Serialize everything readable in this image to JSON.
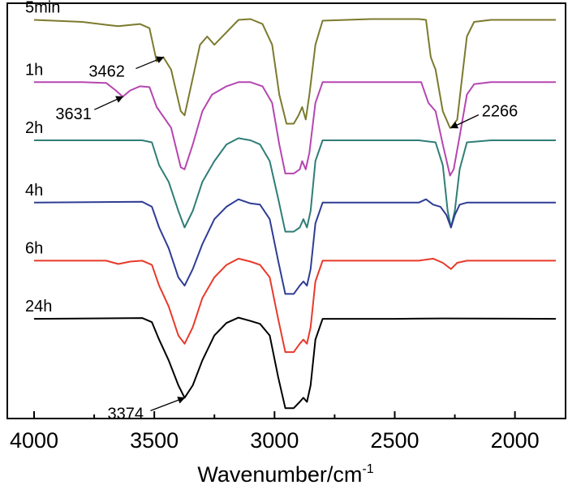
{
  "chart_data": {
    "type": "line",
    "title": "",
    "xlabel": "Wavenumber/cm",
    "xlabel_superscript": "-1",
    "ylabel": "",
    "xlim": [
      4000,
      1830
    ],
    "x_reversed": true,
    "x_ticks": [
      4000,
      3500,
      3000,
      2500,
      2000
    ],
    "x_tick_labels": [
      "4000",
      "3500",
      "3000",
      "2500",
      "2000"
    ],
    "grid": false,
    "legend": "inline labels at left of each trace",
    "series": [
      {
        "name": "5min",
        "color": "#7c7a2e",
        "baseline": 0.96,
        "points": [
          [
            4000,
            0.96
          ],
          [
            3800,
            0.955
          ],
          [
            3700,
            0.948
          ],
          [
            3650,
            0.945
          ],
          [
            3560,
            0.95
          ],
          [
            3520,
            0.94
          ],
          [
            3490,
            0.86
          ],
          [
            3462,
            0.87
          ],
          [
            3430,
            0.84
          ],
          [
            3390,
            0.74
          ],
          [
            3374,
            0.73
          ],
          [
            3340,
            0.82
          ],
          [
            3310,
            0.9
          ],
          [
            3280,
            0.92
          ],
          [
            3250,
            0.9
          ],
          [
            3200,
            0.93
          ],
          [
            3150,
            0.96
          ],
          [
            3100,
            0.962
          ],
          [
            3050,
            0.95
          ],
          [
            3010,
            0.9
          ],
          [
            2980,
            0.78
          ],
          [
            2950,
            0.71
          ],
          [
            2920,
            0.71
          ],
          [
            2900,
            0.73
          ],
          [
            2885,
            0.75
          ],
          [
            2870,
            0.72
          ],
          [
            2855,
            0.78
          ],
          [
            2830,
            0.9
          ],
          [
            2800,
            0.958
          ],
          [
            2600,
            0.962
          ],
          [
            2400,
            0.962
          ],
          [
            2370,
            0.96
          ],
          [
            2350,
            0.87
          ],
          [
            2330,
            0.84
          ],
          [
            2300,
            0.74
          ],
          [
            2270,
            0.7
          ],
          [
            2266,
            0.7
          ],
          [
            2240,
            0.72
          ],
          [
            2220,
            0.82
          ],
          [
            2200,
            0.92
          ],
          [
            2170,
            0.955
          ],
          [
            2100,
            0.96
          ],
          [
            1830,
            0.96
          ]
        ]
      },
      {
        "name": "1h",
        "color": "#b546b0",
        "baseline": 0.81,
        "points": [
          [
            4000,
            0.81
          ],
          [
            3800,
            0.81
          ],
          [
            3700,
            0.808
          ],
          [
            3660,
            0.79
          ],
          [
            3631,
            0.775
          ],
          [
            3600,
            0.79
          ],
          [
            3560,
            0.8
          ],
          [
            3520,
            0.798
          ],
          [
            3490,
            0.75
          ],
          [
            3430,
            0.7
          ],
          [
            3390,
            0.605
          ],
          [
            3374,
            0.6
          ],
          [
            3340,
            0.66
          ],
          [
            3300,
            0.74
          ],
          [
            3260,
            0.78
          ],
          [
            3200,
            0.8
          ],
          [
            3150,
            0.81
          ],
          [
            3100,
            0.81
          ],
          [
            3050,
            0.8
          ],
          [
            3010,
            0.76
          ],
          [
            2980,
            0.66
          ],
          [
            2955,
            0.59
          ],
          [
            2920,
            0.59
          ],
          [
            2895,
            0.6
          ],
          [
            2885,
            0.62
          ],
          [
            2870,
            0.6
          ],
          [
            2855,
            0.64
          ],
          [
            2830,
            0.76
          ],
          [
            2800,
            0.81
          ],
          [
            2500,
            0.81
          ],
          [
            2390,
            0.81
          ],
          [
            2360,
            0.76
          ],
          [
            2330,
            0.74
          ],
          [
            2300,
            0.66
          ],
          [
            2270,
            0.585
          ],
          [
            2255,
            0.6
          ],
          [
            2230,
            0.68
          ],
          [
            2200,
            0.78
          ],
          [
            2170,
            0.805
          ],
          [
            2100,
            0.81
          ],
          [
            1830,
            0.81
          ]
        ]
      },
      {
        "name": "2h",
        "color": "#2f7e76",
        "baseline": 0.67,
        "points": [
          [
            4000,
            0.67
          ],
          [
            3550,
            0.67
          ],
          [
            3510,
            0.665
          ],
          [
            3480,
            0.61
          ],
          [
            3440,
            0.57
          ],
          [
            3400,
            0.5
          ],
          [
            3374,
            0.46
          ],
          [
            3340,
            0.5
          ],
          [
            3300,
            0.57
          ],
          [
            3250,
            0.62
          ],
          [
            3200,
            0.66
          ],
          [
            3150,
            0.675
          ],
          [
            3100,
            0.67
          ],
          [
            3060,
            0.66
          ],
          [
            3020,
            0.62
          ],
          [
            2985,
            0.53
          ],
          [
            2955,
            0.45
          ],
          [
            2920,
            0.45
          ],
          [
            2895,
            0.46
          ],
          [
            2880,
            0.48
          ],
          [
            2865,
            0.46
          ],
          [
            2850,
            0.5
          ],
          [
            2830,
            0.62
          ],
          [
            2800,
            0.67
          ],
          [
            2400,
            0.67
          ],
          [
            2330,
            0.665
          ],
          [
            2300,
            0.61
          ],
          [
            2280,
            0.5
          ],
          [
            2266,
            0.46
          ],
          [
            2250,
            0.5
          ],
          [
            2230,
            0.6
          ],
          [
            2200,
            0.665
          ],
          [
            2100,
            0.67
          ],
          [
            1830,
            0.67
          ]
        ]
      },
      {
        "name": "4h",
        "color": "#2e3d95",
        "baseline": 0.52,
        "points": [
          [
            4000,
            0.52
          ],
          [
            3550,
            0.522
          ],
          [
            3510,
            0.51
          ],
          [
            3480,
            0.46
          ],
          [
            3440,
            0.41
          ],
          [
            3400,
            0.34
          ],
          [
            3374,
            0.32
          ],
          [
            3340,
            0.36
          ],
          [
            3300,
            0.42
          ],
          [
            3250,
            0.48
          ],
          [
            3200,
            0.51
          ],
          [
            3150,
            0.528
          ],
          [
            3100,
            0.518
          ],
          [
            3060,
            0.515
          ],
          [
            3020,
            0.48
          ],
          [
            2985,
            0.38
          ],
          [
            2955,
            0.3
          ],
          [
            2920,
            0.3
          ],
          [
            2895,
            0.32
          ],
          [
            2880,
            0.33
          ],
          [
            2865,
            0.32
          ],
          [
            2850,
            0.36
          ],
          [
            2830,
            0.47
          ],
          [
            2800,
            0.52
          ],
          [
            2400,
            0.52
          ],
          [
            2370,
            0.528
          ],
          [
            2340,
            0.515
          ],
          [
            2310,
            0.51
          ],
          [
            2285,
            0.49
          ],
          [
            2266,
            0.46
          ],
          [
            2250,
            0.49
          ],
          [
            2230,
            0.515
          ],
          [
            2200,
            0.52
          ],
          [
            1830,
            0.52
          ]
        ]
      },
      {
        "name": "6h",
        "color": "#e83a2b",
        "baseline": 0.38,
        "points": [
          [
            4000,
            0.38
          ],
          [
            3700,
            0.38
          ],
          [
            3650,
            0.372
          ],
          [
            3600,
            0.378
          ],
          [
            3550,
            0.38
          ],
          [
            3510,
            0.37
          ],
          [
            3480,
            0.32
          ],
          [
            3440,
            0.27
          ],
          [
            3400,
            0.2
          ],
          [
            3374,
            0.18
          ],
          [
            3340,
            0.22
          ],
          [
            3300,
            0.29
          ],
          [
            3250,
            0.34
          ],
          [
            3200,
            0.37
          ],
          [
            3150,
            0.385
          ],
          [
            3100,
            0.378
          ],
          [
            3060,
            0.37
          ],
          [
            3020,
            0.34
          ],
          [
            2985,
            0.24
          ],
          [
            2955,
            0.16
          ],
          [
            2920,
            0.16
          ],
          [
            2895,
            0.18
          ],
          [
            2880,
            0.19
          ],
          [
            2865,
            0.18
          ],
          [
            2850,
            0.22
          ],
          [
            2830,
            0.33
          ],
          [
            2800,
            0.38
          ],
          [
            2400,
            0.38
          ],
          [
            2340,
            0.385
          ],
          [
            2300,
            0.375
          ],
          [
            2266,
            0.36
          ],
          [
            2240,
            0.375
          ],
          [
            2200,
            0.38
          ],
          [
            1830,
            0.38
          ]
        ]
      },
      {
        "name": "24h",
        "color": "#000000",
        "baseline": 0.24,
        "points": [
          [
            4000,
            0.24
          ],
          [
            3550,
            0.242
          ],
          [
            3510,
            0.232
          ],
          [
            3480,
            0.19
          ],
          [
            3440,
            0.14
          ],
          [
            3400,
            0.08
          ],
          [
            3374,
            0.05
          ],
          [
            3340,
            0.08
          ],
          [
            3300,
            0.14
          ],
          [
            3250,
            0.2
          ],
          [
            3200,
            0.23
          ],
          [
            3150,
            0.243
          ],
          [
            3100,
            0.235
          ],
          [
            3060,
            0.228
          ],
          [
            3020,
            0.2
          ],
          [
            2985,
            0.1
          ],
          [
            2955,
            0.025
          ],
          [
            2920,
            0.025
          ],
          [
            2895,
            0.04
          ],
          [
            2880,
            0.05
          ],
          [
            2865,
            0.04
          ],
          [
            2850,
            0.08
          ],
          [
            2830,
            0.19
          ],
          [
            2800,
            0.24
          ],
          [
            2500,
            0.24
          ],
          [
            2300,
            0.241
          ],
          [
            1830,
            0.24
          ]
        ]
      }
    ],
    "annotations": [
      {
        "text": "3462",
        "x": 3462,
        "series": "5min"
      },
      {
        "text": "2266",
        "x": 2266,
        "series": "5min"
      },
      {
        "text": "3631",
        "x": 3631,
        "series": "1h"
      },
      {
        "text": "3374",
        "x": 3374,
        "series": "24h"
      }
    ]
  }
}
